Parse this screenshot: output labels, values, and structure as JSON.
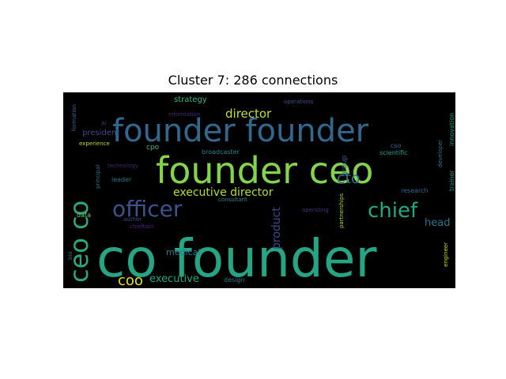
{
  "chart_data": {
    "type": "wordcloud",
    "title": "Cluster 7: 286 connections",
    "background": "#000000",
    "words": [
      {
        "text": "co founder",
        "color": "#26a584"
      },
      {
        "text": "founder ceo",
        "color": "#84d44b"
      },
      {
        "text": "founder founder",
        "color": "#31688e"
      },
      {
        "text": "ceo co",
        "color": "#2aa97e"
      },
      {
        "text": "officer",
        "color": "#3b528b"
      },
      {
        "text": "chief",
        "color": "#22a884"
      },
      {
        "text": "executive director",
        "color": "#b5de2b"
      },
      {
        "text": "director",
        "color": "#c2df23"
      },
      {
        "text": "cto",
        "color": "#2e6f8e"
      },
      {
        "text": "coo",
        "color": "#dde318"
      },
      {
        "text": "executive",
        "color": "#22a884"
      },
      {
        "text": "product",
        "color": "#3e4989"
      },
      {
        "text": "head",
        "color": "#2c728e"
      },
      {
        "text": "medical",
        "color": "#2a788e"
      },
      {
        "text": "strategy",
        "color": "#35b779"
      },
      {
        "text": "president",
        "color": "#3e4989"
      },
      {
        "text": "cpo",
        "color": "#35b779"
      },
      {
        "text": "group",
        "color": "#31688e"
      },
      {
        "text": "developer",
        "color": "#2a788e"
      },
      {
        "text": "innovation",
        "color": "#1f9e89"
      },
      {
        "text": "trainer",
        "color": "#21918c"
      },
      {
        "text": "partnerships",
        "color": "#a0da39"
      },
      {
        "text": "research",
        "color": "#31688e"
      },
      {
        "text": "scientific",
        "color": "#1f9e89"
      },
      {
        "text": "cso",
        "color": "#31688e"
      },
      {
        "text": "formation",
        "color": "#31688e"
      },
      {
        "text": "ai",
        "color": "#433e85"
      },
      {
        "text": "information",
        "color": "#482878"
      },
      {
        "text": "operations",
        "color": "#3b528b"
      },
      {
        "text": "experience",
        "color": "#b5de2b"
      },
      {
        "text": "broadcaster",
        "color": "#26828e"
      },
      {
        "text": "technology",
        "color": "#481f70"
      },
      {
        "text": "leader",
        "color": "#2d708e"
      },
      {
        "text": "principal",
        "color": "#2d708e"
      },
      {
        "text": "consultant",
        "color": "#26828e"
      },
      {
        "text": "author",
        "color": "#3e4989"
      },
      {
        "text": "data",
        "color": "#6ccd5a"
      },
      {
        "text": "chieftain",
        "color": "#482878"
      },
      {
        "text": "operating",
        "color": "#46327e"
      },
      {
        "text": "bio",
        "color": "#2d708e"
      },
      {
        "text": "engineer",
        "color": "#c2df23"
      },
      {
        "text": "design",
        "color": "#2a788e"
      }
    ]
  }
}
